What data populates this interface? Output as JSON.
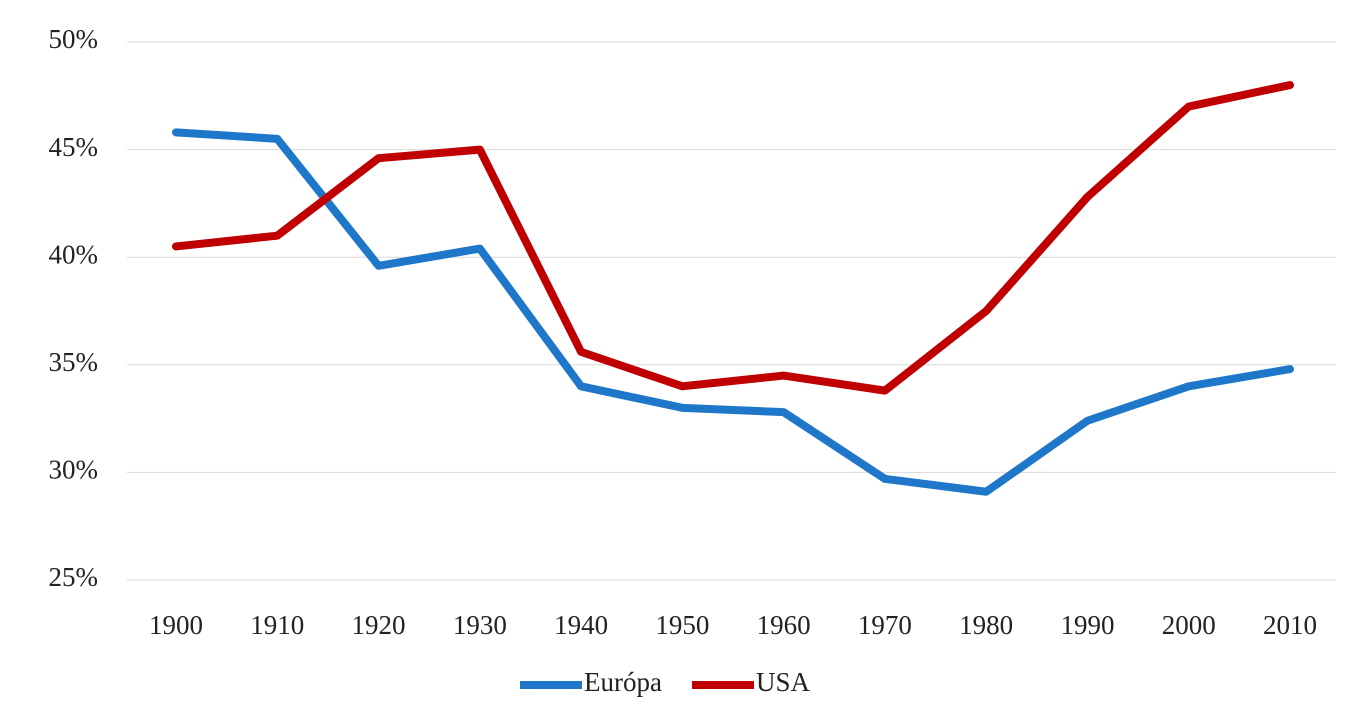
{
  "chart_data": {
    "type": "line",
    "categories": [
      "1900",
      "1910",
      "1920",
      "1930",
      "1940",
      "1950",
      "1960",
      "1970",
      "1980",
      "1990",
      "2000",
      "2010"
    ],
    "series": [
      {
        "name": "Európa",
        "color": "#1f77c9",
        "values": [
          45.8,
          45.5,
          39.6,
          40.4,
          34.0,
          33.0,
          32.8,
          29.7,
          29.1,
          32.4,
          34.0,
          34.8
        ]
      },
      {
        "name": "USA",
        "color": "#c00000",
        "values": [
          40.5,
          41.0,
          44.6,
          45.0,
          35.6,
          34.0,
          34.5,
          33.8,
          37.5,
          42.8,
          47.0,
          48.0
        ]
      }
    ],
    "ylim": [
      25,
      50
    ],
    "yticks": [
      {
        "value": 25,
        "label": "25%"
      },
      {
        "value": 30,
        "label": "30%"
      },
      {
        "value": 35,
        "label": "35%"
      },
      {
        "value": 40,
        "label": "40%"
      },
      {
        "value": 45,
        "label": "45%"
      },
      {
        "value": 50,
        "label": "50%"
      }
    ],
    "grid": true,
    "legend": "bottom"
  }
}
